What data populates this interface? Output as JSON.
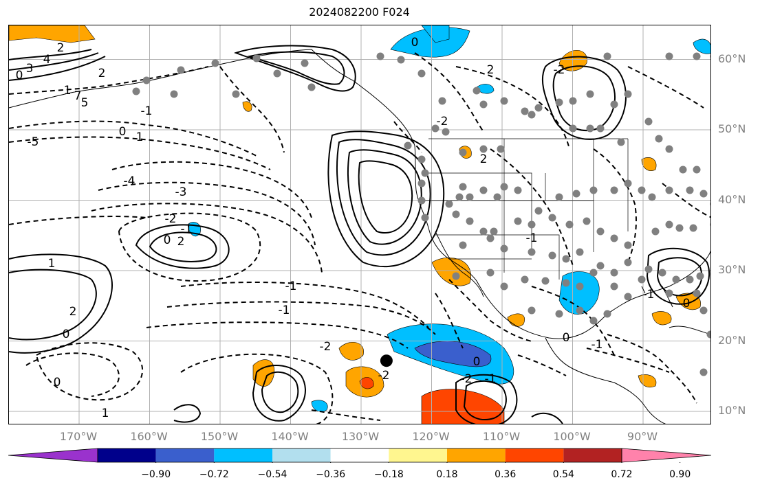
{
  "title": "2024082200 F024",
  "lat_labels": [
    {
      "text": "60°N",
      "lat": 60
    },
    {
      "text": "50°N",
      "lat": 50
    },
    {
      "text": "40°N",
      "lat": 40
    },
    {
      "text": "30°N",
      "lat": 30
    },
    {
      "text": "20°N",
      "lat": 20
    },
    {
      "text": "10°N",
      "lat": 10
    }
  ],
  "lon_labels": [
    {
      "text": "170°W",
      "lon": -170
    },
    {
      "text": "160°W",
      "lon": -160
    },
    {
      "text": "150°W",
      "lon": -150
    },
    {
      "text": "140°W",
      "lon": -140
    },
    {
      "text": "130°W",
      "lon": -130
    },
    {
      "text": "120°W",
      "lon": -120
    },
    {
      "text": "110°W",
      "lon": -110
    },
    {
      "text": "100°W",
      "lon": -100
    },
    {
      "text": "90°W",
      "lon": -90
    }
  ],
  "colorbar": {
    "colors": [
      "#9a32cd",
      "#00008b",
      "#3a5fcd",
      "#00bfff",
      "#b2dfee",
      "#ffffff",
      "#fff68f",
      "#ffa500",
      "#ff4500",
      "#b22222",
      "#ff82ab"
    ],
    "ticks": [
      "−0.90",
      "−0.72",
      "−0.54",
      "−0.36",
      "−0.18",
      "0.18",
      "0.36",
      "0.54",
      "0.72",
      "0.90"
    ]
  },
  "contour_labels": [
    "2",
    "4",
    "3",
    "0",
    "1",
    "7",
    "5",
    "2",
    "1",
    "0",
    "-1",
    "-5",
    "-4",
    "-3",
    "-2",
    "-1",
    "0",
    "2",
    "1",
    "2",
    "0",
    "-1",
    "-2",
    "-1",
    "-2",
    "0",
    "1",
    "2",
    "-1",
    "0",
    "-2",
    "-1",
    "0",
    "0",
    "-2",
    "2",
    "2",
    "-2",
    "-1",
    "0",
    "-1",
    "-1",
    "0"
  ],
  "markers": {
    "large_dot": {
      "lon": -126.4,
      "lat": 17.2
    }
  }
}
